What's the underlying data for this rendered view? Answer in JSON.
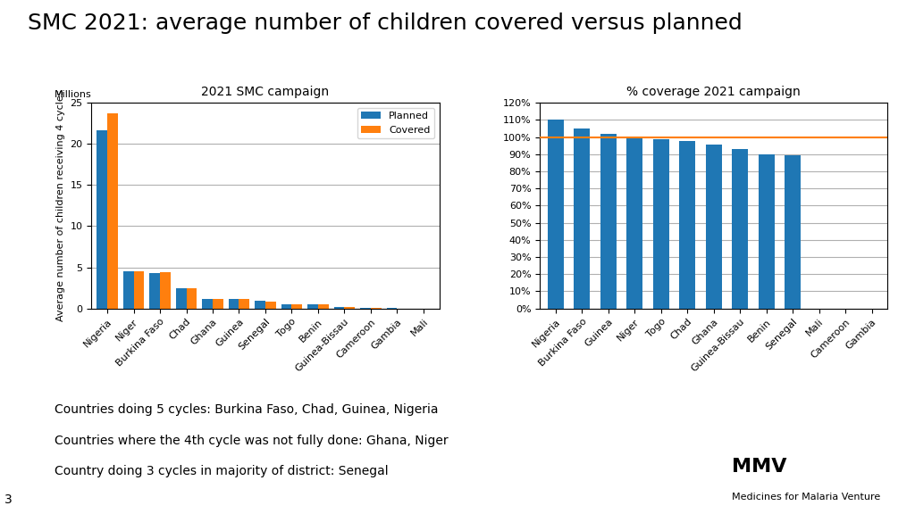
{
  "title": "SMC 2021: average number of children covered versus planned",
  "footnotes": [
    "Countries doing 5 cycles: Burkina Faso, Chad, Guinea, Nigeria",
    "Countries where the 4th cycle was not fully done: Ghana, Niger",
    "Country doing 3 cycles in majority of district: Senegal"
  ],
  "page_number": "3",
  "logo_text": [
    "MMV",
    "Medicines for Malaria Venture"
  ],
  "chart_data": [
    {
      "type": "bar",
      "title": "2021 SMC campaign",
      "ylabel": "Average number of children receiving 4 cycles",
      "annotations": [
        "Millions"
      ],
      "categories": [
        "Nigeria",
        "Niger",
        "Burkina Faso",
        "Chad",
        "Ghana",
        "Guinea",
        "Senegal",
        "Togo",
        "Benin",
        "Guinea-Bissau",
        "Cameroon",
        "Gambia",
        "Mali"
      ],
      "series": [
        {
          "name": "Planned",
          "values": [
            21.7,
            4.55,
            4.3,
            2.5,
            1.2,
            1.1,
            0.9,
            0.55,
            0.45,
            0.2,
            0.05,
            0.02,
            0.01
          ]
        },
        {
          "name": "Covered",
          "values": [
            23.7,
            4.55,
            4.45,
            2.5,
            1.2,
            1.1,
            0.85,
            0.55,
            0.45,
            0.18,
            0.04,
            0.01,
            0.005
          ]
        }
      ],
      "ylim": [
        0,
        25
      ],
      "yticks": [
        0,
        5,
        10,
        15,
        20,
        25
      ],
      "grid": true,
      "legend": "upper right"
    },
    {
      "type": "bar",
      "title": "% coverage 2021 campaign",
      "categories": [
        "Nigeria",
        "Burkina Faso",
        "Guinea",
        "Niger",
        "Togo",
        "Chad",
        "Ghana",
        "Guinea-Bissau",
        "Benin",
        "Senegal",
        "Mali",
        "Cameroon",
        "Gambia"
      ],
      "values": [
        110,
        105,
        102,
        100,
        98.5,
        97.5,
        95.5,
        93,
        90,
        89.5,
        0,
        0,
        0
      ],
      "ylim": [
        0,
        120
      ],
      "yticks": [
        {
          "value": 0,
          "label": "0%"
        },
        {
          "value": 10,
          "label": "10%"
        },
        {
          "value": 20,
          "label": "20%"
        },
        {
          "value": 30,
          "label": "30%"
        },
        {
          "value": 40,
          "label": "40%"
        },
        {
          "value": 50,
          "label": "50%"
        },
        {
          "value": 60,
          "label": "60%"
        },
        {
          "value": 70,
          "label": "70%"
        },
        {
          "value": 80,
          "label": "80%"
        },
        {
          "value": 90,
          "label": "90%"
        },
        {
          "value": 100,
          "label": "100%"
        },
        {
          "value": 110,
          "label": "110%"
        },
        {
          "value": 120,
          "label": "120%"
        }
      ],
      "hline": 100,
      "grid": true
    }
  ]
}
